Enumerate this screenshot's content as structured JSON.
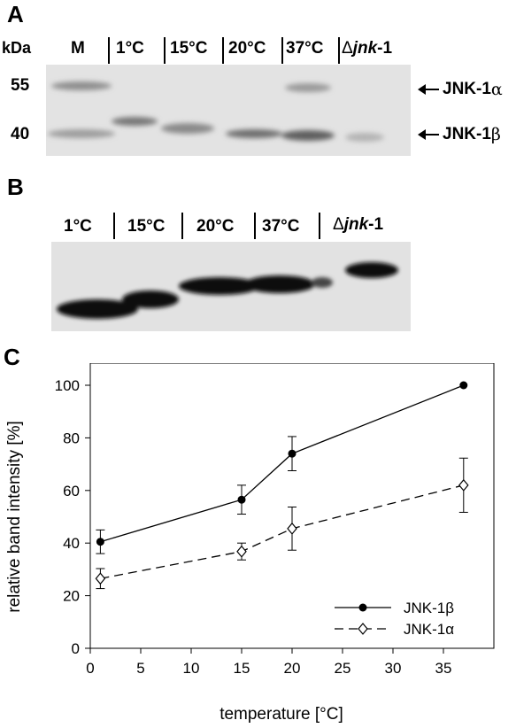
{
  "panel_a": {
    "letter": "A",
    "kda_label": "kDa",
    "lanes": [
      "M",
      "1°C",
      "15°C",
      "20°C",
      "37°C"
    ],
    "mutant_delta": "Δ",
    "mutant_gene": "jnk",
    "mutant_suffix": "-1",
    "markers": [
      "55",
      "40"
    ],
    "band_alpha_base": "JNK-1",
    "band_alpha_greek": "α",
    "band_beta_base": "JNK-1",
    "band_beta_greek": "β"
  },
  "panel_b": {
    "letter": "B",
    "lanes": [
      "1°C",
      "15°C",
      "20°C",
      "37°C"
    ],
    "mutant_delta": "Δ",
    "mutant_gene": "jnk",
    "mutant_suffix": "-1"
  },
  "panel_c": {
    "letter": "C"
  },
  "chart_data": {
    "type": "line",
    "title": "",
    "xlabel": "temperature [°C]",
    "ylabel": "relative band intensity [%]",
    "xlim": [
      0,
      40
    ],
    "ylim": [
      0,
      100
    ],
    "xticks": [
      0,
      5,
      10,
      15,
      20,
      25,
      30,
      35
    ],
    "yticks": [
      0,
      20,
      40,
      60,
      80,
      100
    ],
    "grid": false,
    "legend_position": "bottom-right",
    "x": [
      1,
      15,
      20,
      37
    ],
    "series": [
      {
        "name": "JNK-1β",
        "marker": "filled-circle",
        "line": "solid",
        "values": [
          40.5,
          56.5,
          74,
          100
        ],
        "errors": [
          4.5,
          5.5,
          6.5,
          0
        ]
      },
      {
        "name": "JNK-1α",
        "marker": "open-diamond",
        "line": "dashed",
        "values": [
          26.5,
          36.8,
          45.5,
          62
        ],
        "errors": [
          3.8,
          3.2,
          8.2,
          10.3
        ]
      }
    ]
  }
}
